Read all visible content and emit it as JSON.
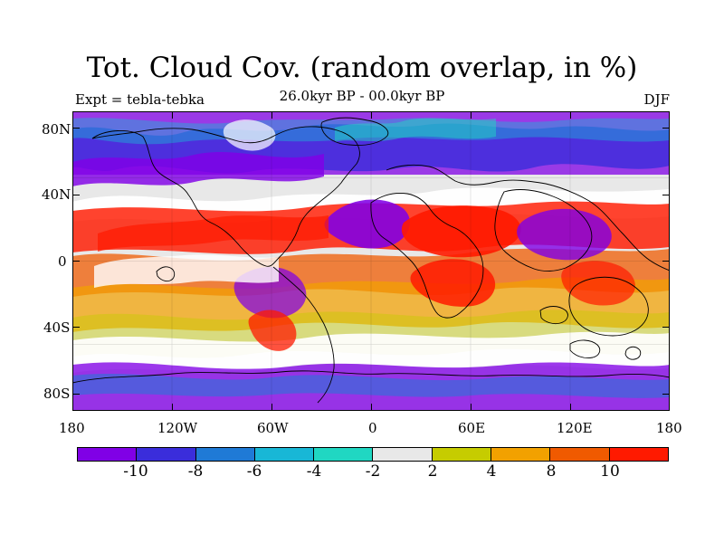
{
  "header": {
    "title": "Tot. Cloud Cov. (random overlap, in %)",
    "left_label": "Expt = tebla-tebka",
    "center_label": "26.0kyr BP - 00.0kyr BP",
    "right_label": "DJF"
  },
  "map": {
    "lat_ticks": [
      "80N",
      "40N",
      "0",
      "40S",
      "80S"
    ],
    "lon_ticks": [
      "180",
      "120W",
      "60W",
      "0",
      "60E",
      "120E",
      "180"
    ],
    "projection": "cylindrical equidistant",
    "field": "cloud cover difference",
    "colors": {
      "land_outline": "#000000",
      "background": "#ffffff"
    }
  },
  "colorbar": {
    "labels": [
      "-10",
      "-8",
      "-6",
      "-4",
      "-2",
      "2",
      "4",
      "8",
      "10"
    ],
    "colors": [
      "#8000e6",
      "#3a2ddb",
      "#1f7ad6",
      "#18b7d6",
      "#20d7c2",
      "#e8e8e8",
      "#c6cc00",
      "#f2a100",
      "#f05a00",
      "#ff1a00"
    ]
  }
}
